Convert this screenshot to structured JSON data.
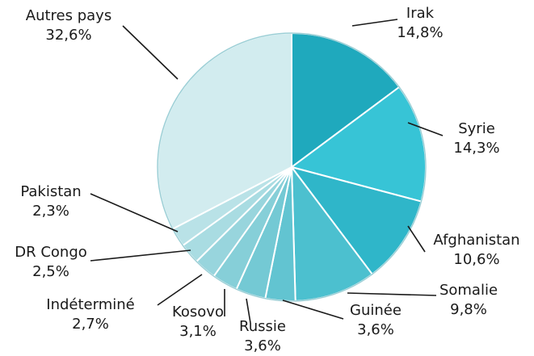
{
  "chart_data": {
    "type": "pie",
    "title": "",
    "start": "12 o'clock, clockwise",
    "slices": [
      {
        "label": "Irak",
        "value": 14.8,
        "value_text": "14,8%",
        "color": "#1fa9bd"
      },
      {
        "label": "Syrie",
        "value": 14.3,
        "value_text": "14,3%",
        "color": "#37c4d6"
      },
      {
        "label": "Afghanistan",
        "value": 10.6,
        "value_text": "10,6%",
        "color": "#2fb6c9"
      },
      {
        "label": "Somalie",
        "value": 9.8,
        "value_text": "9,8%",
        "color": "#4cc0cf"
      },
      {
        "label": "Guinée",
        "value": 3.6,
        "value_text": "3,6%",
        "color": "#62c4d1"
      },
      {
        "label": "Russie",
        "value": 3.6,
        "value_text": "3,6%",
        "color": "#74c9d4"
      },
      {
        "label": "Kosovo",
        "value": 3.1,
        "value_text": "3,1%",
        "color": "#86cfd8"
      },
      {
        "label": "Indéterminé",
        "value": 2.7,
        "value_text": "2,7%",
        "color": "#98d5dd"
      },
      {
        "label": "DR Congo",
        "value": 2.5,
        "value_text": "2,5%",
        "color": "#a9dce2"
      },
      {
        "label": "Pakistan",
        "value": 2.3,
        "value_text": "2,3%",
        "color": "#b9e2e7"
      },
      {
        "label": "Autres pays",
        "value": 32.6,
        "value_text": "32,6%",
        "color": "#d2ecef"
      }
    ],
    "legend": "none (labels with leader lines)",
    "colors": {
      "edge": "#ffffff",
      "text": "#1a1a1a"
    }
  }
}
